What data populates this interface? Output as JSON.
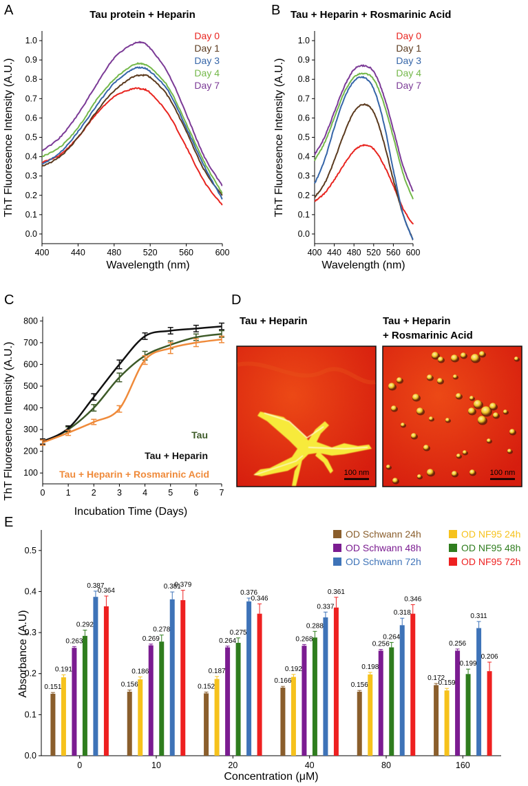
{
  "panels": {
    "A": "A",
    "B": "B",
    "C": "C",
    "D": "D",
    "E": "E"
  },
  "chart_data": [
    {
      "id": "A",
      "type": "line",
      "title": "Tau protein + Heparin",
      "xlabel": "Wavelength (nm)",
      "ylabel": "ThT Fluoresence Intensity (A.U.)",
      "xlim": [
        400,
        600
      ],
      "ylim": [
        -0.05,
        1.05
      ],
      "xticks": [
        400,
        440,
        480,
        520,
        560,
        600
      ],
      "yticks": [
        0.0,
        0.1,
        0.2,
        0.3,
        0.4,
        0.5,
        0.6,
        0.7,
        0.8,
        0.9,
        1.0
      ],
      "legend_position": "top-right",
      "x": [
        400,
        420,
        440,
        460,
        480,
        500,
        510,
        520,
        540,
        560,
        580,
        600
      ],
      "series": [
        {
          "name": "Day 0",
          "color": "#e8241f",
          "values": [
            0.37,
            0.41,
            0.5,
            0.62,
            0.71,
            0.75,
            0.75,
            0.73,
            0.62,
            0.45,
            0.27,
            0.15
          ]
        },
        {
          "name": "Day 1",
          "color": "#5b3a1e",
          "values": [
            0.35,
            0.4,
            0.5,
            0.63,
            0.74,
            0.81,
            0.82,
            0.81,
            0.71,
            0.53,
            0.33,
            0.2
          ]
        },
        {
          "name": "Day 3",
          "color": "#3565a8",
          "values": [
            0.36,
            0.42,
            0.53,
            0.66,
            0.78,
            0.85,
            0.86,
            0.84,
            0.74,
            0.55,
            0.35,
            0.18
          ]
        },
        {
          "name": "Day 4",
          "color": "#74b84a",
          "values": [
            0.4,
            0.45,
            0.55,
            0.69,
            0.8,
            0.87,
            0.88,
            0.86,
            0.76,
            0.57,
            0.37,
            0.21
          ]
        },
        {
          "name": "Day 7",
          "color": "#7b3a96",
          "values": [
            0.43,
            0.5,
            0.62,
            0.77,
            0.91,
            0.98,
            0.99,
            0.96,
            0.83,
            0.62,
            0.4,
            0.25
          ]
        }
      ]
    },
    {
      "id": "B",
      "type": "line",
      "title": "Tau + Heparin + Rosmarinic Acid",
      "xlabel": "Wavelength (nm)",
      "ylabel": "ThT Fluoresence Intensity (A.U.)",
      "xlim": [
        400,
        600
      ],
      "ylim": [
        -0.05,
        1.05
      ],
      "xticks": [
        400,
        440,
        480,
        520,
        560,
        600
      ],
      "yticks": [
        0.0,
        0.1,
        0.2,
        0.3,
        0.4,
        0.5,
        0.6,
        0.7,
        0.8,
        0.9,
        1.0
      ],
      "legend_position": "top-right",
      "x": [
        400,
        420,
        440,
        460,
        480,
        500,
        520,
        540,
        560,
        580,
        600
      ],
      "series": [
        {
          "name": "Day 0",
          "color": "#e8241f",
          "values": [
            0.17,
            0.21,
            0.28,
            0.36,
            0.43,
            0.46,
            0.44,
            0.36,
            0.25,
            0.13,
            0.05
          ]
        },
        {
          "name": "Day 1",
          "color": "#5b3a1e",
          "values": [
            0.19,
            0.26,
            0.38,
            0.52,
            0.63,
            0.67,
            0.63,
            0.48,
            0.28,
            0.1,
            -0.03
          ]
        },
        {
          "name": "Day 3",
          "color": "#3565a8",
          "values": [
            0.26,
            0.38,
            0.55,
            0.7,
            0.79,
            0.81,
            0.75,
            0.58,
            0.33,
            0.1,
            -0.03
          ]
        },
        {
          "name": "Day 4",
          "color": "#74b84a",
          "values": [
            0.38,
            0.47,
            0.6,
            0.73,
            0.81,
            0.83,
            0.8,
            0.68,
            0.5,
            0.31,
            0.18
          ]
        },
        {
          "name": "Day 7",
          "color": "#7b3a96",
          "values": [
            0.41,
            0.5,
            0.63,
            0.76,
            0.85,
            0.87,
            0.84,
            0.72,
            0.54,
            0.35,
            0.22
          ]
        }
      ]
    },
    {
      "id": "C",
      "type": "line",
      "xlabel": "Incubation Time (Days)",
      "ylabel": "ThT Fluoresence Intensity (A.U.)",
      "xlim": [
        0,
        7
      ],
      "ylim": [
        50,
        820
      ],
      "xticks": [
        0,
        1,
        2,
        3,
        4,
        5,
        6,
        7
      ],
      "yticks": [
        100,
        200,
        300,
        400,
        500,
        600,
        700,
        800
      ],
      "legend_position": "bottom-right",
      "x": [
        0,
        1,
        2,
        3,
        4,
        5,
        6,
        7
      ],
      "series": [
        {
          "name": "Tau",
          "color": "#3d5a28",
          "values": [
            240,
            300,
            400,
            540,
            640,
            690,
            725,
            740
          ],
          "errors": [
            12,
            12,
            15,
            20,
            20,
            18,
            15,
            15
          ]
        },
        {
          "name": "Tau + Heparin",
          "color": "#111111",
          "values": [
            245,
            305,
            450,
            600,
            730,
            755,
            765,
            775
          ],
          "errors": [
            12,
            12,
            15,
            20,
            15,
            15,
            15,
            15
          ]
        },
        {
          "name": "Tau + Heparin + Rosmarinic Acid",
          "color": "#ef8a3a",
          "values": [
            240,
            285,
            335,
            395,
            620,
            675,
            700,
            715
          ],
          "errors": [
            12,
            12,
            12,
            15,
            20,
            25,
            18,
            15
          ]
        }
      ]
    },
    {
      "id": "E",
      "type": "bar",
      "xlabel": "Concentration (μM)",
      "ylabel": "Absorbance (A.U)",
      "ylim": [
        0,
        0.55
      ],
      "yticks": [
        0.0,
        0.1,
        0.2,
        0.3,
        0.4,
        0.5
      ],
      "legend_position": "top-right",
      "categories": [
        "0",
        "10",
        "20",
        "40",
        "80",
        "160"
      ],
      "series": [
        {
          "name": "OD Schwann 24h",
          "color": "#8a5e2c",
          "values": [
            0.151,
            0.156,
            0.152,
            0.166,
            0.156,
            0.172
          ],
          "errors": [
            0.003,
            0.004,
            0.003,
            0.003,
            0.003,
            0.004
          ]
        },
        {
          "name": "OD NF95 24h",
          "color": "#f6c21c",
          "values": [
            0.191,
            0.186,
            0.187,
            0.192,
            0.198,
            0.159
          ],
          "errors": [
            0.006,
            0.006,
            0.006,
            0.006,
            0.005,
            0.005
          ]
        },
        {
          "name": "OD Schwann 48h",
          "color": "#7b1c91",
          "values": [
            0.263,
            0.269,
            0.264,
            0.268,
            0.256,
            0.256
          ],
          "errors": [
            0.003,
            0.003,
            0.003,
            0.003,
            0.003,
            0.004
          ]
        },
        {
          "name": "OD NF95 48h",
          "color": "#2f7d1e",
          "values": [
            0.292,
            0.278,
            0.275,
            0.288,
            0.264,
            0.199
          ],
          "errors": [
            0.014,
            0.016,
            0.012,
            0.015,
            0.012,
            0.012
          ]
        },
        {
          "name": "OD Schwann 72h",
          "color": "#3e73b8",
          "values": [
            0.387,
            0.381,
            0.376,
            0.337,
            0.318,
            0.311
          ],
          "errors": [
            0.014,
            0.018,
            0.008,
            0.013,
            0.017,
            0.016
          ]
        },
        {
          "name": "OD NF95 72h",
          "color": "#ee2020",
          "values": [
            0.364,
            0.379,
            0.346,
            0.361,
            0.346,
            0.206
          ],
          "errors": [
            0.025,
            0.024,
            0.024,
            0.025,
            0.022,
            0.022
          ]
        }
      ]
    }
  ],
  "panel_d": {
    "left_label": "Tau + Heparin",
    "right_label_line1": "Tau + Heparin",
    "right_label_line2": "+ Rosmarinic Acid",
    "scale_left": "100 nm",
    "scale_right": "100 nm"
  }
}
